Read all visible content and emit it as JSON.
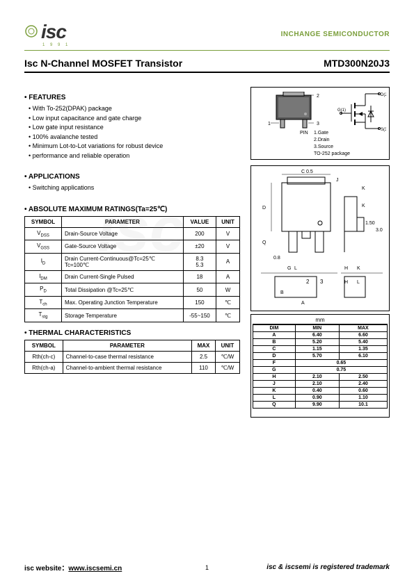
{
  "header": {
    "logo_text": "isc",
    "logo_year": "1 9 9 1",
    "company": "INCHANGE SEMICONDUCTOR"
  },
  "title": {
    "left": "Isc N-Channel MOSFET Transistor",
    "right": "MTD300N20J3"
  },
  "features": {
    "head": "• FEATURES",
    "items": [
      "With To-252(DPAK) package",
      "Low input capacitance and gate charge",
      "Low gate input resistance",
      "100% avalanche tested",
      "Minimum Lot-to-Lot variations for robust device",
      "performance and reliable operation"
    ]
  },
  "applications": {
    "head": "• APPLICATIONS",
    "items": [
      "Switching applications"
    ]
  },
  "pin_info": {
    "pin_label": "PIN",
    "p1": "1.Gate",
    "p2": "2.Drain",
    "p3": "3.Source",
    "pkg": "TO-252 package"
  },
  "abs_max": {
    "head": "• ABSOLUTE MAXIMUM RATINGS(Ta=25℃)",
    "cols": [
      "SYMBOL",
      "PARAMETER",
      "VALUE",
      "UNIT"
    ],
    "rows": [
      {
        "sym": "V",
        "sub": "DSS",
        "param": "Drain-Source Voltage",
        "val": "200",
        "unit": "V"
      },
      {
        "sym": "V",
        "sub": "GSS",
        "param": "Gate-Source Voltage",
        "val": "±20",
        "unit": "V"
      },
      {
        "sym": "I",
        "sub": "D",
        "param": "Drain Current-Continuous@Tc=25℃\nTc=100℃",
        "val": "8.3\n5.3",
        "unit": "A"
      },
      {
        "sym": "I",
        "sub": "DM",
        "param": "Drain Current-Single Pulsed",
        "val": "18",
        "unit": "A"
      },
      {
        "sym": "P",
        "sub": "D",
        "param": "Total Dissipation @Tc=25℃",
        "val": "50",
        "unit": "W"
      },
      {
        "sym": "T",
        "sub": "ch",
        "param": "Max. Operating Junction Temperature",
        "val": "150",
        "unit": "℃"
      },
      {
        "sym": "T",
        "sub": "stg",
        "param": "Storage Temperature",
        "val": "-55~150",
        "unit": "℃"
      }
    ]
  },
  "thermal": {
    "head": "• THERMAL CHARACTERISTICS",
    "cols": [
      "SYMBOL",
      "PARAMETER",
      "MAX",
      "UNIT"
    ],
    "rows": [
      {
        "sym": "Rth(ch-c)",
        "param": "Channel-to-case thermal resistance",
        "val": "2.5",
        "unit": "℃/W"
      },
      {
        "sym": "Rth(ch-a)",
        "param": "Channel-to-ambient thermal resistance",
        "val": "110",
        "unit": "℃/W"
      }
    ]
  },
  "dims": {
    "unit_head": "mm",
    "cols": [
      "DIM",
      "MIN",
      "MAX"
    ],
    "rows": [
      [
        "A",
        "6.40",
        "6.60"
      ],
      [
        "B",
        "5.20",
        "5.40"
      ],
      [
        "C",
        "1.15",
        "1.35"
      ],
      [
        "D",
        "5.70",
        "6.10"
      ],
      [
        "F",
        "0.65",
        ""
      ],
      [
        "G",
        "0.75",
        ""
      ],
      [
        "H",
        "2.10",
        "2.50"
      ],
      [
        "J",
        "2.10",
        "2.40"
      ],
      [
        "K",
        "0.40",
        "0.60"
      ],
      [
        "L",
        "0.90",
        "1.10"
      ],
      [
        "Q",
        "9.90",
        "10.1"
      ]
    ]
  },
  "footer": {
    "left_label": "isc website：",
    "left_url": "www.iscsemi.cn",
    "page": "1",
    "right": "isc & iscsemi is registered trademark"
  },
  "colors": {
    "green": "#7a9e3a",
    "border": "#000000",
    "text": "#000000",
    "bg": "#ffffff"
  }
}
